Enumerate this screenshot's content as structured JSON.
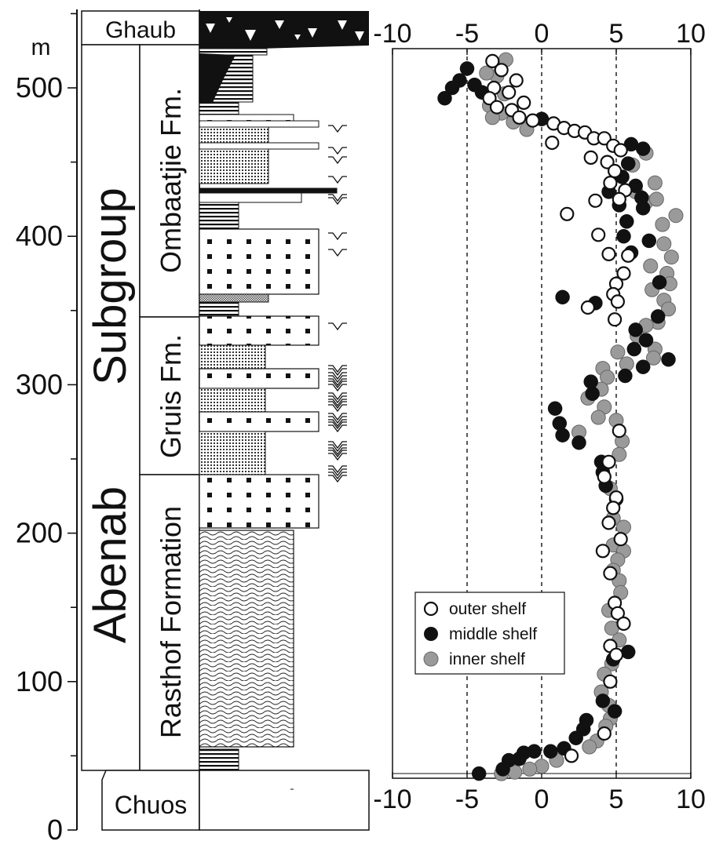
{
  "depth_axis": {
    "unit": "m",
    "ticks": [
      "0",
      "100",
      "200",
      "300",
      "400",
      "500"
    ]
  },
  "stratigraphy": {
    "group_labels": [
      "Abenab",
      "Subgroup"
    ],
    "formations": {
      "ghaub": "Ghaub",
      "ombaatjie": "Ombaatjie Fm.",
      "gruis": "Gruis Fm.",
      "rasthof": "Rasthof Formation",
      "chuos": "Chuos"
    }
  },
  "legend": {
    "outer": "outer shelf",
    "middle": "middle shelf",
    "inner": "inner shelf"
  },
  "colors": {
    "outer": "#ffffff",
    "middle": "#111111",
    "inner": "#9a9a9a",
    "ink": "#111111"
  },
  "chart_data": {
    "type": "scatter",
    "xlim": [
      -10,
      10
    ],
    "ylim": [
      0,
      540
    ],
    "x_ticks": [
      "-10",
      "-5",
      "0",
      "5",
      "10"
    ],
    "reference_lines_x": [
      -5,
      0,
      5
    ],
    "series": [
      {
        "name": "outer shelf",
        "points": [
          [
            -3.3,
            518
          ],
          [
            -2.7,
            512
          ],
          [
            -1.7,
            505
          ],
          [
            -3.2,
            500
          ],
          [
            -2.2,
            497
          ],
          [
            -3.5,
            493
          ],
          [
            -1.2,
            490
          ],
          [
            -3.0,
            487
          ],
          [
            -2.0,
            485
          ],
          [
            -1.5,
            480
          ],
          [
            -0.6,
            478
          ],
          [
            0.8,
            476
          ],
          [
            1.5,
            473
          ],
          [
            2.2,
            471
          ],
          [
            2.9,
            470
          ],
          [
            3.5,
            466
          ],
          [
            4.2,
            466
          ],
          [
            0.7,
            463
          ],
          [
            3.3,
            453
          ],
          [
            4.8,
            461
          ],
          [
            5.3,
            458
          ],
          [
            4.4,
            450
          ],
          [
            4.9,
            444
          ],
          [
            4.6,
            436
          ],
          [
            5.6,
            431
          ],
          [
            5.2,
            425
          ],
          [
            3.6,
            424
          ],
          [
            1.7,
            415
          ],
          [
            3.8,
            401
          ],
          [
            4.5,
            388
          ],
          [
            5.8,
            387
          ],
          [
            5.5,
            375
          ],
          [
            5.0,
            368
          ],
          [
            4.8,
            361
          ],
          [
            5.1,
            356
          ],
          [
            4.9,
            344
          ],
          [
            3.1,
            352
          ],
          [
            5.2,
            269
          ],
          [
            4.5,
            248
          ],
          [
            4.2,
            238
          ],
          [
            5.0,
            224
          ],
          [
            4.8,
            217
          ],
          [
            4.5,
            207
          ],
          [
            5.3,
            196
          ],
          [
            4.1,
            188
          ],
          [
            4.6,
            173
          ],
          [
            4.9,
            153
          ],
          [
            5.1,
            146
          ],
          [
            5.5,
            139
          ],
          [
            4.6,
            124
          ],
          [
            5.0,
            118
          ],
          [
            4.6,
            100
          ],
          [
            4.2,
            65
          ],
          [
            2.0,
            50
          ]
        ]
      },
      {
        "name": "middle shelf",
        "points": [
          [
            -5.0,
            513
          ],
          [
            -5.5,
            505
          ],
          [
            -6.0,
            500
          ],
          [
            -4.5,
            502
          ],
          [
            -6.5,
            493
          ],
          [
            -4.0,
            497
          ],
          [
            0.0,
            479
          ],
          [
            6.0,
            462
          ],
          [
            6.8,
            459
          ],
          [
            5.8,
            449
          ],
          [
            5.4,
            440
          ],
          [
            6.3,
            434
          ],
          [
            4.5,
            430
          ],
          [
            6.7,
            426
          ],
          [
            5.2,
            421
          ],
          [
            6.8,
            419
          ],
          [
            5.7,
            410
          ],
          [
            5.5,
            400
          ],
          [
            7.2,
            397
          ],
          [
            6.0,
            389
          ],
          [
            7.9,
            369
          ],
          [
            1.4,
            359
          ],
          [
            3.6,
            355
          ],
          [
            7.8,
            346
          ],
          [
            6.3,
            337
          ],
          [
            7.0,
            330
          ],
          [
            6.2,
            324
          ],
          [
            8.5,
            317
          ],
          [
            6.8,
            312
          ],
          [
            5.6,
            306
          ],
          [
            3.3,
            302
          ],
          [
            3.4,
            294
          ],
          [
            0.9,
            284
          ],
          [
            1.2,
            274
          ],
          [
            1.4,
            266
          ],
          [
            2.5,
            261
          ],
          [
            4.0,
            248
          ],
          [
            4.1,
            241
          ],
          [
            4.3,
            232
          ],
          [
            5.0,
            223
          ],
          [
            4.8,
            115
          ],
          [
            5.8,
            120
          ],
          [
            4.1,
            87
          ],
          [
            4.9,
            80
          ],
          [
            3.0,
            74
          ],
          [
            2.8,
            68
          ],
          [
            2.3,
            62
          ],
          [
            1.5,
            55
          ],
          [
            0.6,
            53
          ],
          [
            -0.5,
            53
          ],
          [
            -1.2,
            52
          ],
          [
            -1.5,
            48
          ],
          [
            -2.2,
            47
          ],
          [
            -2.6,
            41
          ],
          [
            -4.2,
            38
          ]
        ]
      },
      {
        "name": "inner shelf",
        "points": [
          [
            -2.4,
            519
          ],
          [
            -3.0,
            508
          ],
          [
            -3.7,
            510
          ],
          [
            -2.5,
            496
          ],
          [
            -3.5,
            488
          ],
          [
            -2.7,
            483
          ],
          [
            -3.3,
            480
          ],
          [
            -1.9,
            477
          ],
          [
            -1.0,
            472
          ],
          [
            7.0,
            456
          ],
          [
            6.1,
            448
          ],
          [
            7.6,
            436
          ],
          [
            6.3,
            430
          ],
          [
            7.0,
            423
          ],
          [
            7.7,
            425
          ],
          [
            8.1,
            408
          ],
          [
            9.0,
            414
          ],
          [
            8.2,
            395
          ],
          [
            8.7,
            386
          ],
          [
            7.3,
            380
          ],
          [
            8.4,
            375
          ],
          [
            8.6,
            368
          ],
          [
            7.4,
            364
          ],
          [
            8.2,
            357
          ],
          [
            8.5,
            351
          ],
          [
            7.8,
            342
          ],
          [
            7.0,
            340
          ],
          [
            6.4,
            333
          ],
          [
            7.6,
            324
          ],
          [
            5.1,
            322
          ],
          [
            7.5,
            318
          ],
          [
            5.7,
            314
          ],
          [
            4.1,
            311
          ],
          [
            4.4,
            305
          ],
          [
            4.0,
            297
          ],
          [
            3.1,
            291
          ],
          [
            4.2,
            285
          ],
          [
            3.8,
            278
          ],
          [
            5.0,
            276
          ],
          [
            5.4,
            262
          ],
          [
            2.5,
            268
          ],
          [
            5.2,
            253
          ],
          [
            4.6,
            230
          ],
          [
            4.8,
            210
          ],
          [
            5.5,
            204
          ],
          [
            4.8,
            192
          ],
          [
            5.5,
            188
          ],
          [
            5.1,
            182
          ],
          [
            4.8,
            175
          ],
          [
            5.2,
            168
          ],
          [
            5.3,
            160
          ],
          [
            4.5,
            148
          ],
          [
            4.7,
            136
          ],
          [
            5.2,
            128
          ],
          [
            4.7,
            112
          ],
          [
            4.2,
            105
          ],
          [
            4.0,
            93
          ],
          [
            4.5,
            84
          ],
          [
            4.6,
            75
          ],
          [
            4.3,
            70
          ],
          [
            3.7,
            60
          ],
          [
            3.2,
            56
          ],
          [
            1.0,
            47
          ],
          [
            0.0,
            43
          ],
          [
            -0.8,
            41
          ],
          [
            -1.8,
            39
          ],
          [
            -2.7,
            38
          ]
        ]
      }
    ]
  }
}
